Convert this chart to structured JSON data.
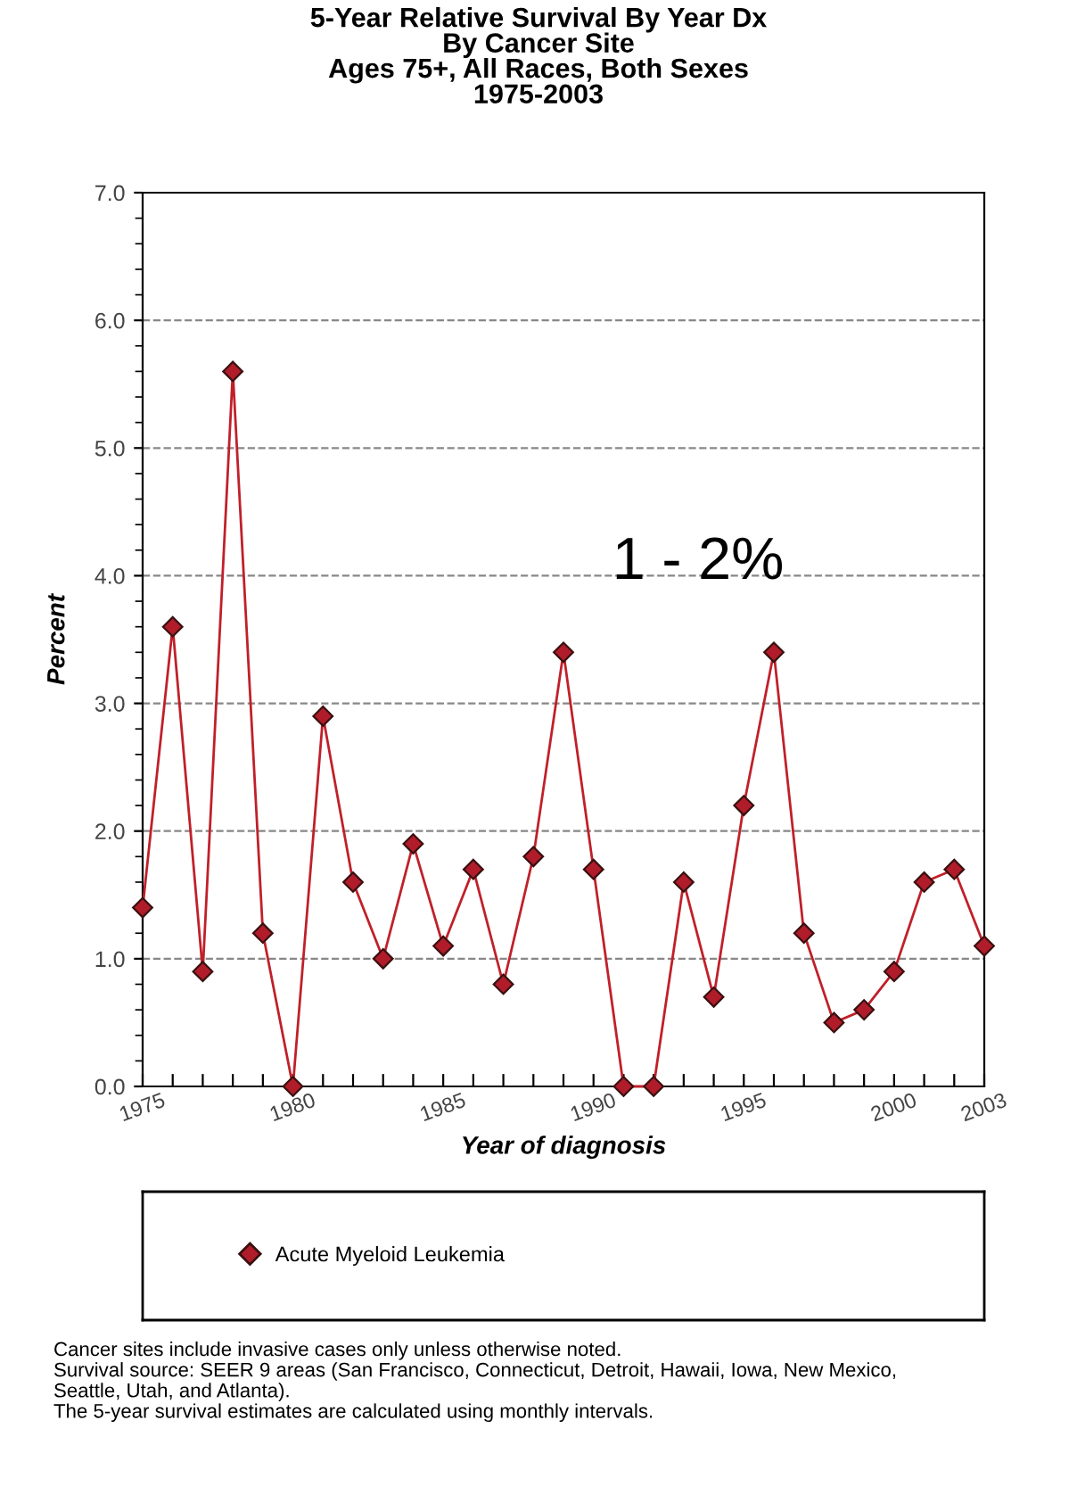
{
  "chart_data": {
    "type": "line",
    "title": "5-Year Relative Survival By Year Dx\nBy Cancer Site\nAges 75+, All Races, Both Sexes\n1975-2003",
    "xlabel": "Year of diagnosis",
    "ylabel": "Percent",
    "x": [
      1975,
      1976,
      1977,
      1978,
      1979,
      1980,
      1981,
      1982,
      1983,
      1984,
      1985,
      1986,
      1987,
      1988,
      1989,
      1990,
      1991,
      1992,
      1993,
      1994,
      1995,
      1996,
      1997,
      1998,
      1999,
      2000,
      2001,
      2002,
      2003
    ],
    "series": [
      {
        "name": "Acute Myeloid Leukemia",
        "color": "#c0202a",
        "values": [
          1.4,
          3.6,
          0.9,
          5.6,
          1.2,
          0.0,
          2.9,
          1.6,
          1.0,
          1.9,
          1.1,
          1.7,
          0.8,
          1.8,
          3.4,
          1.7,
          0.0,
          0.0,
          1.6,
          0.7,
          2.2,
          3.4,
          1.2,
          0.5,
          0.6,
          0.9,
          1.6,
          1.7,
          1.1
        ]
      }
    ],
    "xlim": [
      1975,
      2003
    ],
    "xticks": [
      1975,
      {
        "value": 1976,
        "label": null
      },
      {
        "value": 1977,
        "label": null
      },
      {
        "value": 1978,
        "label": null
      },
      {
        "value": 1979,
        "label": null
      },
      1980,
      {
        "value": 1981,
        "label": null
      },
      {
        "value": 1982,
        "label": null
      },
      {
        "value": 1983,
        "label": null
      },
      {
        "value": 1984,
        "label": null
      },
      1985,
      {
        "value": 1986,
        "label": null
      },
      {
        "value": 1987,
        "label": null
      },
      {
        "value": 1988,
        "label": null
      },
      {
        "value": 1989,
        "label": null
      },
      1990,
      {
        "value": 1991,
        "label": null
      },
      {
        "value": 1992,
        "label": null
      },
      {
        "value": 1993,
        "label": null
      },
      {
        "value": 1994,
        "label": null
      },
      1995,
      {
        "value": 1996,
        "label": null
      },
      {
        "value": 1997,
        "label": null
      },
      {
        "value": 1998,
        "label": null
      },
      {
        "value": 1999,
        "label": null
      },
      2000,
      {
        "value": 2001,
        "label": null
      },
      {
        "value": 2002,
        "label": null
      },
      2003
    ],
    "ylim": [
      0,
      7
    ],
    "yticks": [
      {
        "value": 0,
        "label": "0.0"
      },
      {
        "value": 1,
        "label": "1.0"
      },
      {
        "value": 2,
        "label": "2.0"
      },
      {
        "value": 3,
        "label": "3.0"
      },
      {
        "value": 4,
        "label": "4.0"
      },
      {
        "value": 5,
        "label": "5.0"
      },
      {
        "value": 6,
        "label": "6.0"
      },
      {
        "value": 7,
        "label": "7.0"
      }
    ],
    "grid": "y",
    "marker": "diamond",
    "line_style": "solid",
    "legend": "bottom",
    "annotations": [
      "1 - 2%",
      "Cancer sites include invasive cases only unless otherwise noted.\nSurvival source: SEER 9 areas (San Francisco, Connecticut, Detroit, Hawaii, Iowa, New Mexico,\nSeattle, Utah, and Atlanta).\nThe 5-year survival estimates are calculated using monthly intervals."
    ]
  }
}
